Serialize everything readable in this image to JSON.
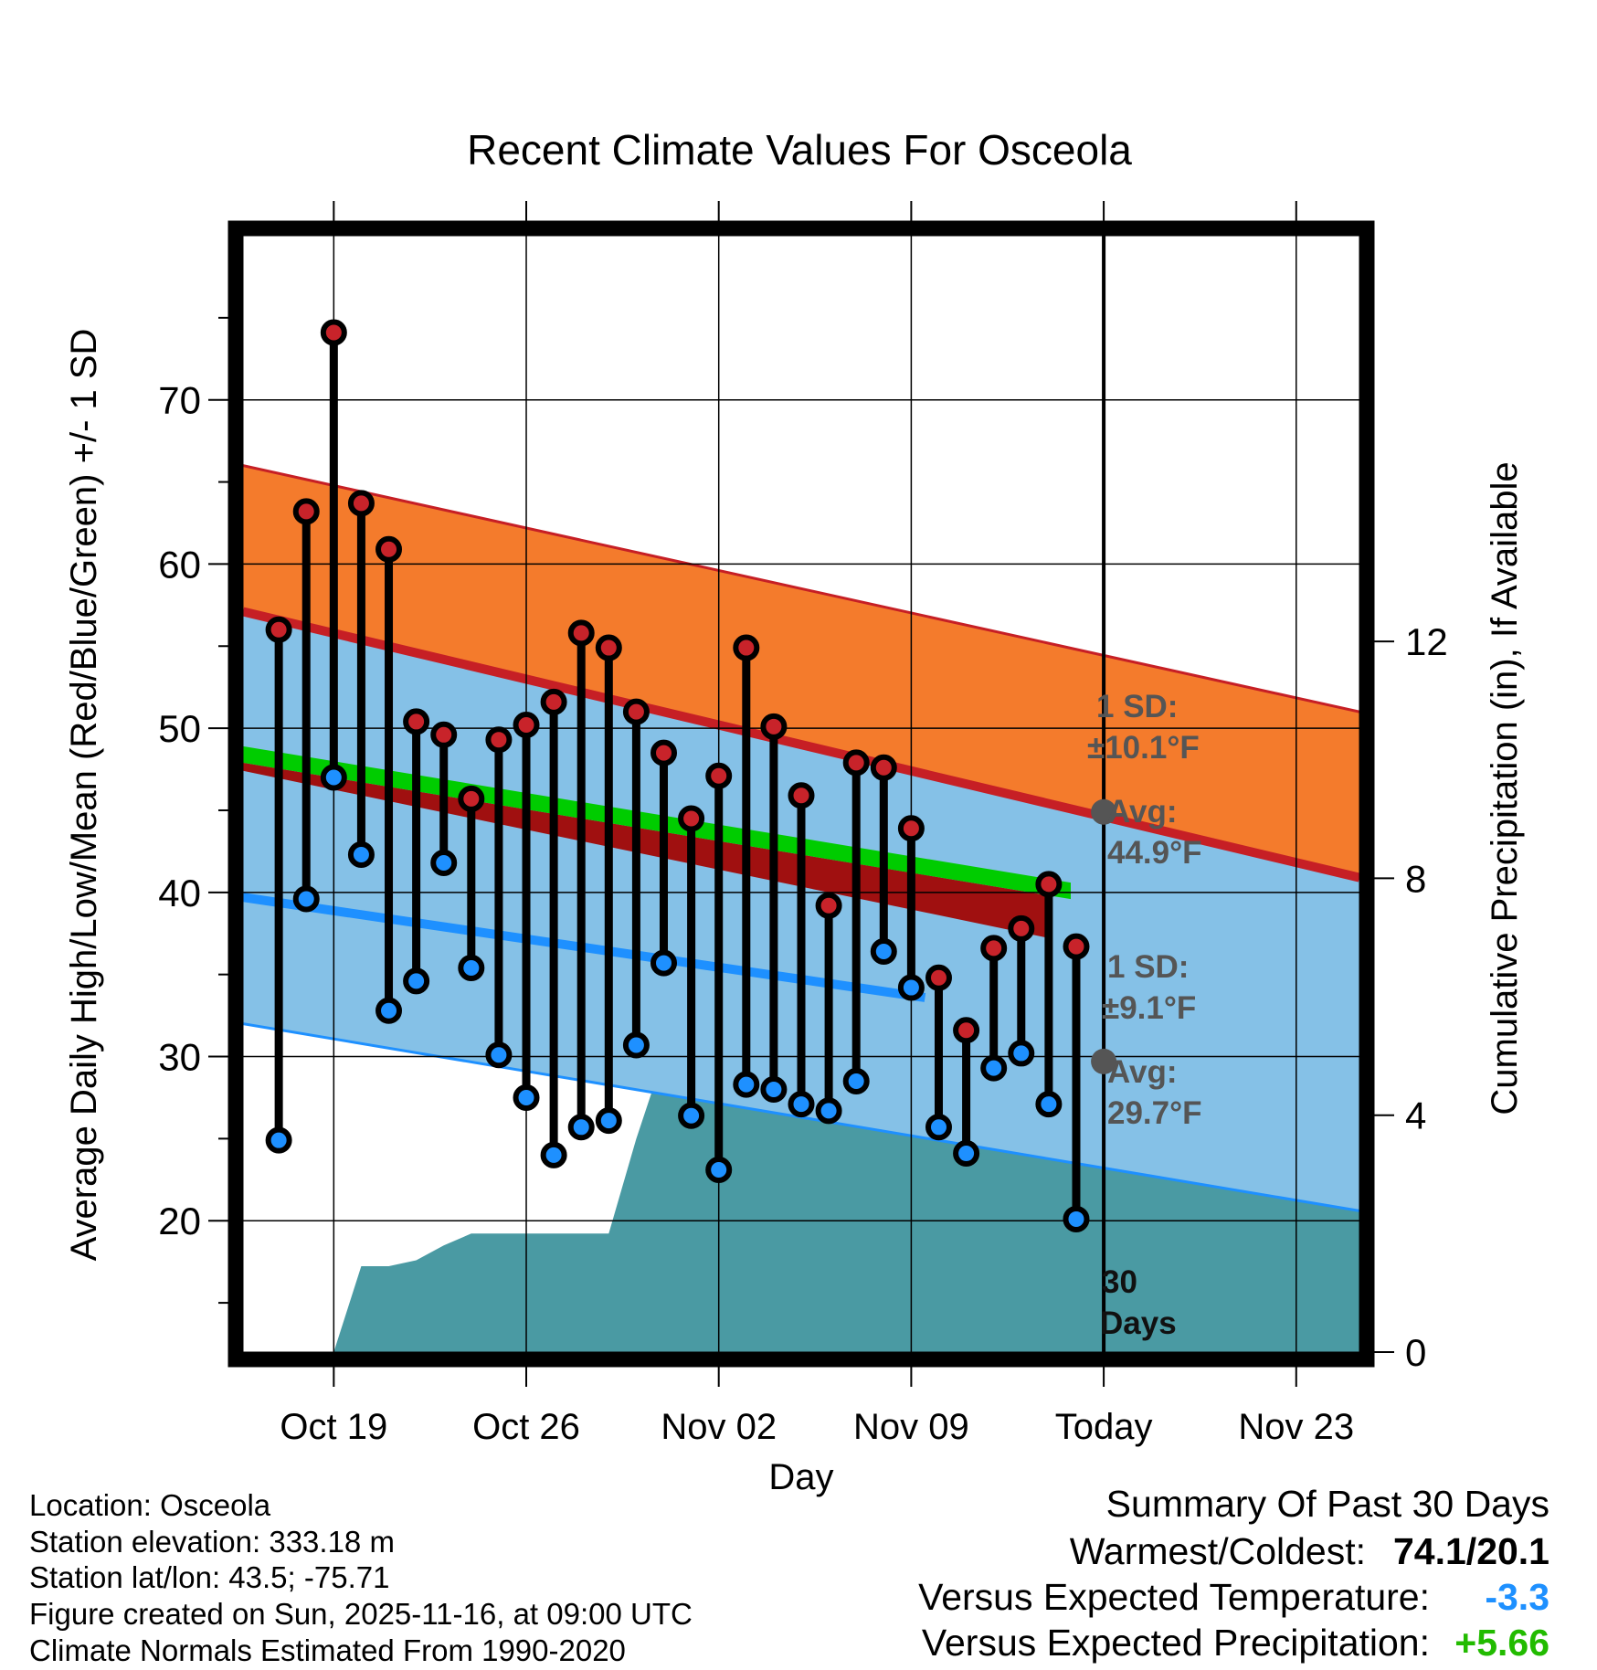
{
  "chart_data": {
    "type": "line",
    "title": "Recent Climate Values For Osceola",
    "xlabel": "Day",
    "ylabel": "Average Daily High/Low/Mean (Red/Blue/Green) +/- 1 SD",
    "y2label": "Cumulative Precipitation (in), If Available",
    "ylim": [
      12,
      80
    ],
    "y2lim": [
      0,
      18.85
    ],
    "xlim": [
      -3.3,
      37.3
    ],
    "y_ticks": [
      20,
      30,
      40,
      50,
      60,
      70
    ],
    "y_minor_ticks": [
      15,
      25,
      35,
      45,
      55,
      65,
      75
    ],
    "y2_ticks": [
      0,
      4,
      8,
      12
    ],
    "x_ticks": [
      {
        "day": 0,
        "label": "Oct 19"
      },
      {
        "day": 7,
        "label": "Oct 26"
      },
      {
        "day": 14,
        "label": "Nov 02"
      },
      {
        "day": 21,
        "label": "Nov 09"
      },
      {
        "day": 28,
        "label": "Today"
      },
      {
        "day": 35,
        "label": "Nov 23"
      }
    ],
    "today_day": 28,
    "normals": {
      "high_mean": {
        "start": 57.1,
        "end": 40.9
      },
      "high_upper": {
        "start": 66.0,
        "end": 51.0
      },
      "low_mean": {
        "start": 39.7,
        "end": 29.7
      },
      "low_lower": {
        "start": 32.0,
        "end": 20.6
      },
      "mean_upper": {
        "start": 48.9,
        "end": 37.7
      },
      "mean_lower": {
        "start": 47.9,
        "end": 36.7
      }
    },
    "daily": {
      "days": [
        -2,
        -1,
        0,
        1,
        2,
        3,
        4,
        5,
        6,
        7,
        8,
        9,
        10,
        11,
        12,
        13,
        14,
        15,
        16,
        17,
        18,
        19,
        20,
        21,
        22,
        23,
        24,
        25,
        26,
        27
      ],
      "highs": [
        56.0,
        63.2,
        74.1,
        63.7,
        60.9,
        50.4,
        49.6,
        45.7,
        49.3,
        50.2,
        51.6,
        55.8,
        54.9,
        51.0,
        48.5,
        44.5,
        47.1,
        54.9,
        50.1,
        45.9,
        39.2,
        47.9,
        47.6,
        43.9,
        34.8,
        31.6,
        36.6,
        37.8,
        40.5,
        36.7
      ],
      "lows": [
        24.9,
        39.6,
        47.0,
        42.3,
        32.8,
        34.6,
        41.8,
        35.4,
        30.1,
        27.5,
        24.0,
        25.7,
        26.1,
        30.7,
        35.7,
        26.4,
        23.1,
        28.3,
        28.0,
        27.1,
        26.7,
        28.5,
        36.4,
        34.2,
        25.7,
        24.1,
        29.3,
        30.2,
        27.1,
        20.1
      ]
    },
    "precip": {
      "days": [
        0,
        1,
        2,
        3,
        4,
        5,
        6,
        7,
        8,
        9,
        10,
        11,
        12,
        13,
        14,
        15,
        16,
        17,
        18,
        19,
        20,
        21,
        22,
        23,
        24,
        25,
        26,
        27,
        37.3
      ],
      "values": [
        0,
        1.45,
        1.45,
        1.55,
        1.8,
        2.0,
        2.0,
        2.0,
        2.0,
        2.0,
        2.0,
        3.6,
        5.0,
        5.1,
        5.1,
        6.0,
        6.4,
        6.5,
        6.6,
        7.0,
        7.0,
        7.4,
        7.4,
        7.9,
        8.5,
        9.4,
        9.8,
        10.1,
        10.1
      ]
    },
    "annotations": {
      "high_sd_label": "1 SD:",
      "high_sd_value": "±10.1°F",
      "high_avg_label": "Avg:",
      "high_avg_value": "44.9°F",
      "high_avg_point": 44.9,
      "low_sd_label": "1 SD:",
      "low_sd_value": "±9.1°F",
      "low_avg_label": "Avg:",
      "low_avg_value": "29.7°F",
      "low_avg_point": 29.7,
      "period_label_1": "30",
      "period_label_2": "Days"
    },
    "colors": {
      "high_band": "#f47b2c",
      "high_line": "#c61f25",
      "low_band": "#85c1e7",
      "low_line": "#1e90ff",
      "mean_band": "#00cc00",
      "mean_dark": "#a01010",
      "precip": "#4a9aa3",
      "high_dot": "#c8232a",
      "low_dot": "#1e90ff",
      "annotation": "#555555"
    }
  },
  "info": {
    "location": "Location: Osceola",
    "elevation": "Station elevation: 333.18 m",
    "latlon": "Station lat/lon: 43.5; -75.71",
    "created": "Figure created on Sun, 2025-11-16, at 09:00 UTC",
    "normals": "Climate Normals Estimated From 1990-2020"
  },
  "summary": {
    "title": "Summary Of Past 30 Days",
    "warm_cold_label": "Warmest/Coldest:",
    "warm_cold_value": "74.1/20.1",
    "temp_label": "Versus Expected Temperature:",
    "temp_value": "-3.3",
    "temp_color": "#1e90ff",
    "precip_label": "Versus Expected Precipitation:",
    "precip_value": "+5.66",
    "precip_color": "#22bb00"
  }
}
